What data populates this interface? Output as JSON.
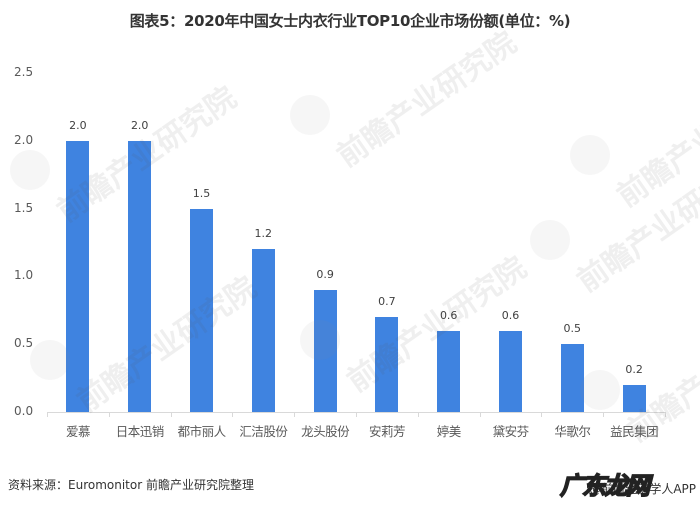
{
  "title": "图表5：2020年中国女士内衣行业TOP10企业市场份额(单位：%)",
  "source": "资料来源：Euromonitor 前瞻产业研究院整理",
  "watermarks": {
    "background_text": "前瞻产业研究院",
    "corner_logo": "广东龙网",
    "corner_text": "@前瞻经济学人APP"
  },
  "colors": {
    "bar": "#3f83e0",
    "axis": "#d9d9d9",
    "text": "#595959"
  },
  "chart_data": {
    "type": "bar",
    "title": "图表5：2020年中国女士内衣行业TOP10企业市场份额(单位：%)",
    "xlabel": "",
    "ylabel": "",
    "categories": [
      "爱慕",
      "日本迅销",
      "都市丽人",
      "汇洁股份",
      "龙头股份",
      "安莉芳",
      "婷美",
      "黛安芬",
      "华歌尔",
      "益民集团"
    ],
    "values": [
      2.0,
      2.0,
      1.5,
      1.2,
      0.9,
      0.7,
      0.6,
      0.6,
      0.5,
      0.2
    ],
    "value_labels": [
      "2.0",
      "2.0",
      "1.5",
      "1.2",
      "0.9",
      "0.7",
      "0.6",
      "0.6",
      "0.5",
      "0.2"
    ],
    "ylim": [
      0,
      2.5
    ],
    "yticks": [
      "0.0",
      "0.5",
      "1.0",
      "1.5",
      "2.0",
      "2.5"
    ],
    "grid": false,
    "legend": null
  }
}
